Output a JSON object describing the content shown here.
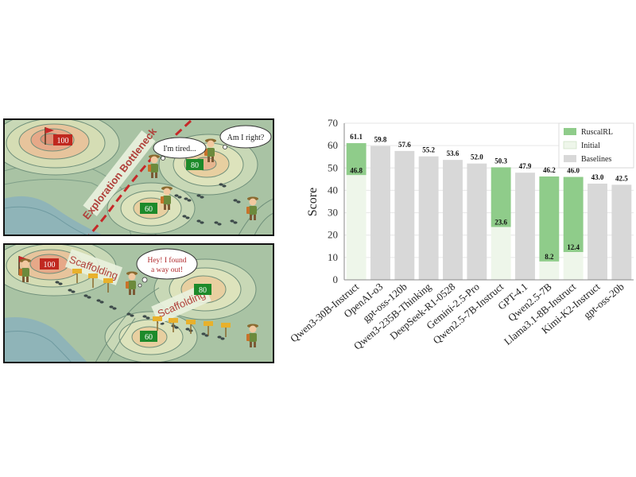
{
  "illustration": {
    "top_panel": {
      "peak_high": "100",
      "peak_mid": "80",
      "peak_low": "60",
      "banner": "Exploration Bottleneck",
      "bubble_tired": "I'm tired...",
      "bubble_right": "Am I right?"
    },
    "bottom_panel": {
      "peak_high": "100",
      "peak_mid": "80",
      "peak_low": "60",
      "banner_left": "Scaffolding",
      "banner_right": "Scaffolding",
      "bubble_found": "Hey! I found a way out!"
    },
    "colors": {
      "contour_fill": "#b9cdb0",
      "contour_line": "#6f8f7a",
      "water": "#8fb4b8",
      "peak_warm": "#e2a183",
      "path_dashed": "#c62828",
      "banner_bg": "#e9f1dd",
      "banner_text": "#b0403a",
      "badge_red": "#c0281f",
      "badge_green": "#1d8a2a"
    }
  },
  "chart_data": {
    "type": "bar",
    "ylabel": "Score",
    "ylim": [
      0,
      70
    ],
    "yticks": [
      0,
      10,
      20,
      30,
      40,
      50,
      60,
      70
    ],
    "categories": [
      "Qwen3-30B-Instruct",
      "OpenAI-o3",
      "gpt-oss-120b",
      "Qwen3-235B-Thinking",
      "DeepSeek-R1-0528",
      "Gemini-2.5-Pro",
      "Qwen2.5-7B-Instruct",
      "GPT-4.1",
      "Qwen2.5-7B",
      "Llama3.1-8B-Instruct",
      "Kimi-K2-Instruct",
      "gpt-oss-20b"
    ],
    "bars": [
      {
        "kind": "ruscal",
        "final": 61.1,
        "initial": 46.8
      },
      {
        "kind": "baseline",
        "value": 59.8
      },
      {
        "kind": "baseline",
        "value": 57.6
      },
      {
        "kind": "baseline",
        "value": 55.2
      },
      {
        "kind": "baseline",
        "value": 53.6
      },
      {
        "kind": "baseline",
        "value": 52.0
      },
      {
        "kind": "ruscal",
        "final": 50.3,
        "initial": 23.6
      },
      {
        "kind": "baseline",
        "value": 47.9
      },
      {
        "kind": "ruscal",
        "final": 46.2,
        "initial": 8.2
      },
      {
        "kind": "ruscal",
        "final": 46.0,
        "initial": 12.4
      },
      {
        "kind": "baseline",
        "value": 43.0
      },
      {
        "kind": "baseline",
        "value": 42.5
      }
    ],
    "value_labels": [
      "61.1",
      "59.8",
      "57.6",
      "55.2",
      "53.6",
      "52.0",
      "50.3",
      "47.9",
      "46.2",
      "46.0",
      "43.0",
      "42.5"
    ],
    "initial_labels": [
      "46.8",
      "",
      "",
      "",
      "",
      "",
      "23.6",
      "",
      "8.2",
      "12.4",
      "",
      ""
    ],
    "legend": {
      "placement": "top-right",
      "items": [
        {
          "label": "RuscalRL",
          "color": "#8fcc8a"
        },
        {
          "label": "Initial",
          "color": "#eef6ea"
        },
        {
          "label": "Baselines",
          "color": "#d8d8d8"
        }
      ]
    },
    "grid": true,
    "colors": {
      "ruscal": "#8fcc8a",
      "initial": "#eef6ea",
      "baseline": "#d8d8d8",
      "grid": "#e6e6e6"
    }
  }
}
